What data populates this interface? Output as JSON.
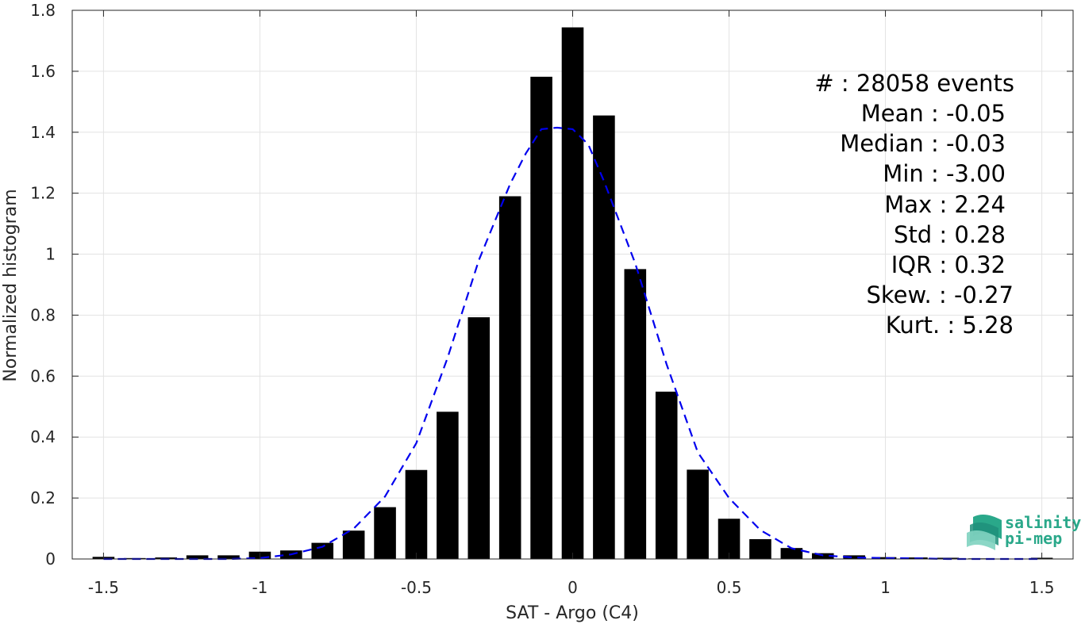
{
  "chart_data": {
    "type": "bar",
    "xlabel": "SAT - Argo (C4)",
    "ylabel": "Normalized histogram",
    "xlim": [
      -1.6,
      1.6
    ],
    "ylim": [
      0,
      1.8
    ],
    "xticks": [
      -1.5,
      -1,
      -0.5,
      0,
      0.5,
      1,
      1.5
    ],
    "xtick_labels": [
      "-1.5",
      "-1",
      "-0.5",
      "0",
      "0.5",
      "1",
      "1.5"
    ],
    "yticks": [
      0,
      0.2,
      0.4,
      0.6,
      0.8,
      1,
      1.2,
      1.4,
      1.6,
      1.8
    ],
    "ytick_labels": [
      "0",
      "0.2",
      "0.4",
      "0.6",
      "0.8",
      "1",
      "1.2",
      "1.4",
      "1.6",
      "1.8"
    ],
    "grid": true,
    "bar_width": 0.07,
    "bar_color": "#000000",
    "series": [
      {
        "x": [
          -1.5,
          -1.4,
          -1.3,
          -1.2,
          -1.1,
          -1.0,
          -0.9,
          -0.8,
          -0.7,
          -0.6,
          -0.5,
          -0.4,
          -0.3,
          -0.2,
          -0.1,
          0.0,
          0.1,
          0.2,
          0.3,
          0.4,
          0.5,
          0.6,
          0.7,
          0.8,
          0.9,
          1.0,
          1.1,
          1.2,
          1.3,
          1.4,
          1.5
        ],
        "values": [
          0.007,
          0.003,
          0.005,
          0.012,
          0.012,
          0.024,
          0.028,
          0.053,
          0.093,
          0.17,
          0.292,
          0.483,
          0.793,
          1.19,
          1.582,
          1.744,
          1.455,
          0.951,
          0.549,
          0.293,
          0.132,
          0.065,
          0.036,
          0.019,
          0.012,
          0.006,
          0.005,
          0.004,
          0.002,
          0.001,
          0.004
        ]
      }
    ],
    "fit": {
      "style": "dashed",
      "color": "#0000ee",
      "x": [
        -1.5,
        -1.4,
        -1.3,
        -1.2,
        -1.1,
        -1.0,
        -0.9,
        -0.8,
        -0.7,
        -0.6,
        -0.5,
        -0.4,
        -0.3,
        -0.2,
        -0.15,
        -0.1,
        -0.05,
        0.0,
        0.05,
        0.1,
        0.2,
        0.3,
        0.4,
        0.5,
        0.6,
        0.7,
        0.8,
        0.9,
        1.0,
        1.1,
        1.2,
        1.3,
        1.4,
        1.5
      ],
      "values": [
        0.0,
        0.0,
        0.0,
        0.0,
        0.0,
        0.003,
        0.015,
        0.04,
        0.1,
        0.205,
        0.38,
        0.66,
        0.98,
        1.23,
        1.33,
        1.41,
        1.415,
        1.41,
        1.36,
        1.24,
        0.97,
        0.64,
        0.35,
        0.2,
        0.095,
        0.035,
        0.012,
        0.005,
        0.003,
        0.002,
        0.0,
        0.0,
        0.0,
        0.0
      ]
    }
  },
  "stats": {
    "events": "#  : 28058 events",
    "mean": "Mean : -0.05",
    "median": "Median : -0.03",
    "min": "Min : -3.00",
    "max": "Max : 2.24",
    "std": "Std : 0.28",
    "iqr": "IQR : 0.32",
    "skew": "Skew. : -0.27",
    "kurt": "Kurt. : 5.28"
  },
  "logo": {
    "line1": "salinity",
    "line2": "pi-mep",
    "colors": [
      "#2aa88a",
      "#1f8f7a",
      "#7fd3c0"
    ]
  }
}
